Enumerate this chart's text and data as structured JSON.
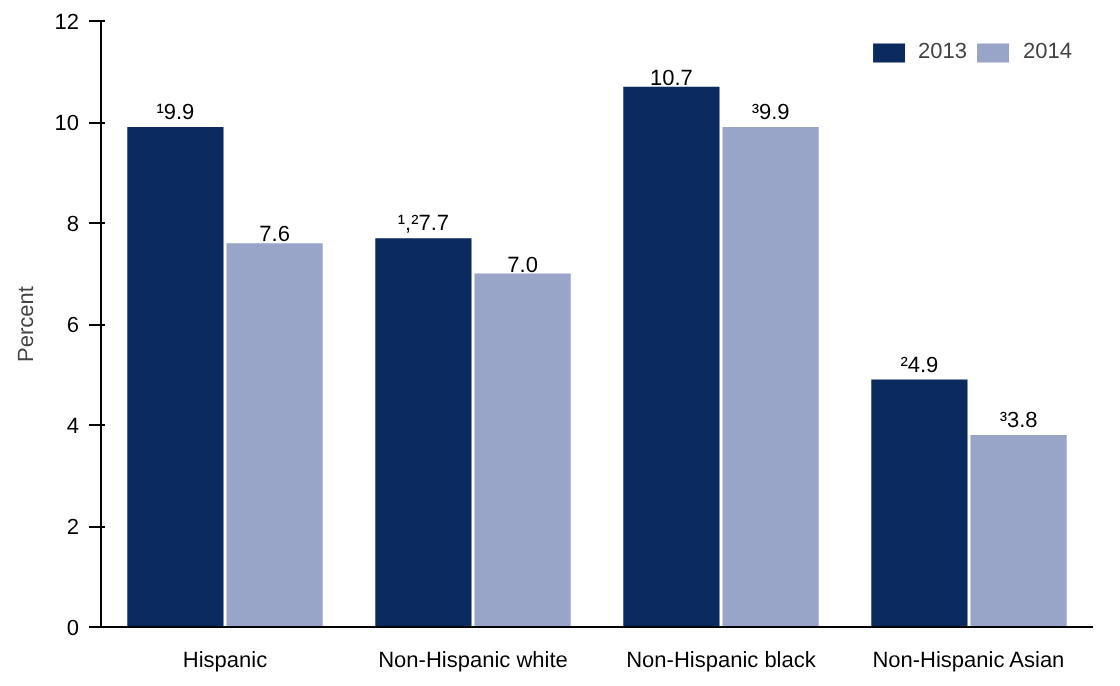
{
  "chart_data": {
    "type": "bar",
    "categories": [
      "Hispanic",
      "Non-Hispanic white",
      "Non-Hispanic black",
      "Non-Hispanic Asian"
    ],
    "ylabel": "Percent",
    "ylim": [
      0,
      12
    ],
    "yticks": [
      0,
      2,
      4,
      6,
      8,
      10,
      12
    ],
    "grid": false,
    "legend": "top right",
    "series": [
      {
        "name": "2013",
        "color": "#0b2a5e",
        "values": [
          9.9,
          7.7,
          10.7,
          4.9
        ],
        "value_labels": [
          "¹9.9",
          "¹,²7.7",
          "10.7",
          "²4.9"
        ]
      },
      {
        "name": "2014",
        "color": "#98a4c8",
        "values": [
          7.6,
          7.0,
          9.9,
          3.8
        ],
        "value_labels": [
          "7.6",
          "7.0",
          "³9.9",
          "³3.8"
        ]
      }
    ]
  }
}
